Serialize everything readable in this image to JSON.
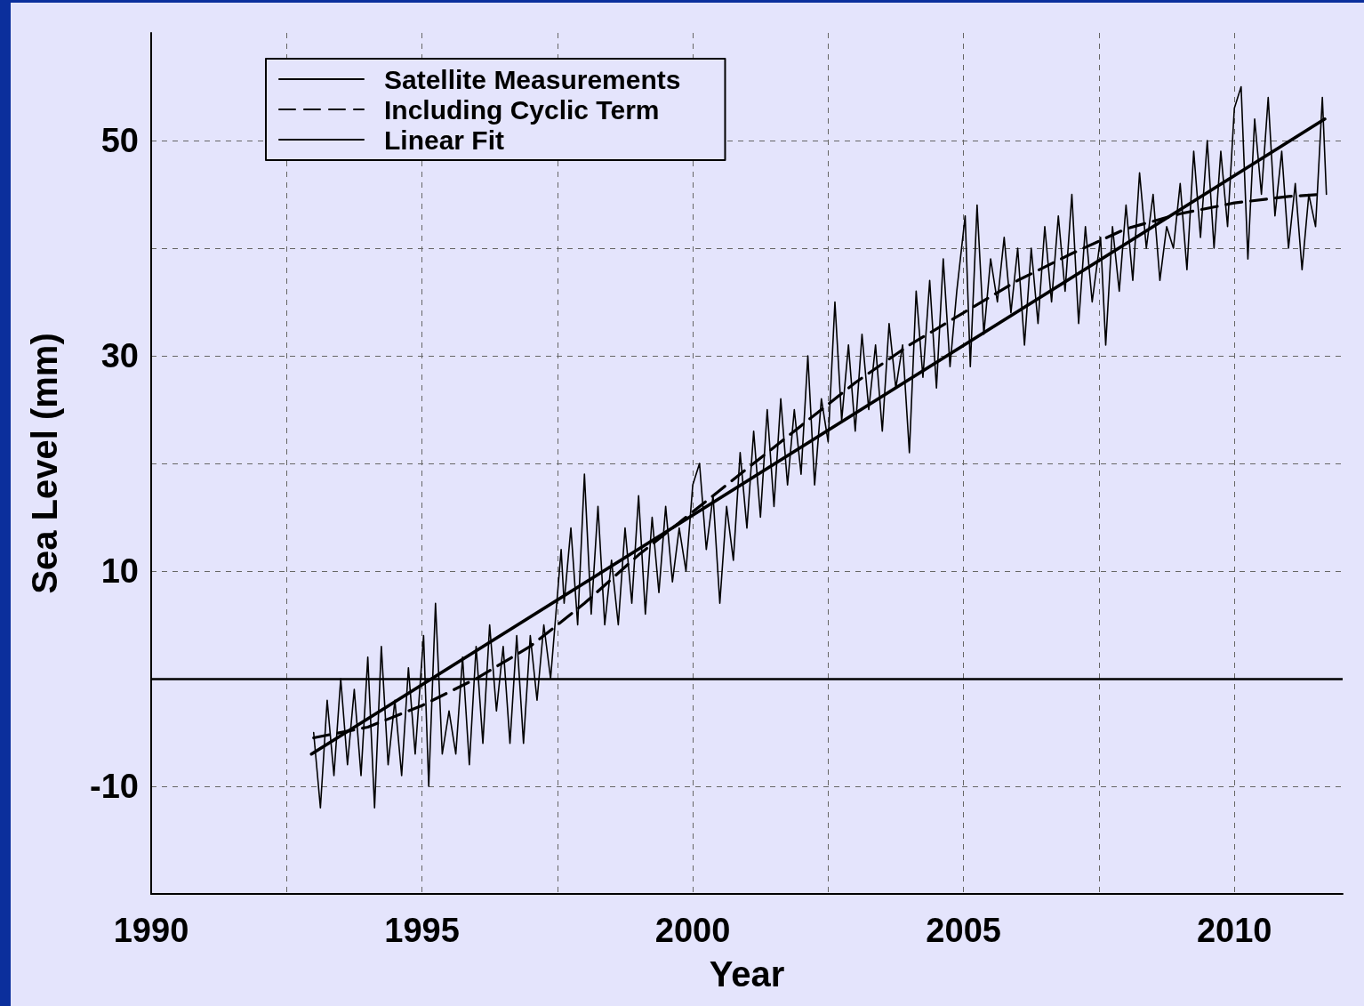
{
  "chart_data": {
    "type": "line",
    "xlabel": "Year",
    "ylabel": "Sea Level (mm)",
    "xlim": [
      1990,
      2012
    ],
    "ylim": [
      -20,
      60
    ],
    "xticks": [
      1990,
      {
        "value": 1992.5,
        "label": null
      },
      1995,
      {
        "value": 1997.5,
        "label": null
      },
      2000,
      {
        "value": 2002.5,
        "label": null
      },
      2005,
      {
        "value": 2007.5,
        "label": null
      },
      2010
    ],
    "yticks": [
      -10,
      {
        "value": 0,
        "label": null
      },
      10,
      {
        "value": 20,
        "label": null
      },
      30,
      {
        "value": 40,
        "label": null
      },
      50
    ],
    "grid": true,
    "legend": "top left",
    "marker": "none",
    "ref_lines": [
      {
        "axis": "y",
        "value": 0,
        "label": null,
        "color": "#000000",
        "line_style": "solid"
      }
    ],
    "series": [
      {
        "name": "Satellite Measurements",
        "color": "#000000",
        "line_style": "solid",
        "x": [
          1993,
          1993.125,
          1993.25,
          1993.375,
          1993.5,
          1993.625,
          1993.75,
          1993.875,
          1994,
          1994.125,
          1994.25,
          1994.375,
          1994.5,
          1994.625,
          1994.75,
          1994.875,
          1995.03,
          1995.125,
          1995.25,
          1995.375,
          1995.5,
          1995.625,
          1995.75,
          1995.875,
          1996,
          1996.125,
          1996.25,
          1996.375,
          1996.5,
          1996.625,
          1996.75,
          1996.875,
          1997,
          1997.125,
          1997.25,
          1997.375,
          1997.57,
          1997.625,
          1997.75,
          1997.875,
          1998,
          1998.125,
          1998.25,
          1998.375,
          1998.5,
          1998.625,
          1998.75,
          1998.875,
          1999,
          1999.125,
          1999.25,
          1999.375,
          1999.5,
          1999.625,
          1999.75,
          1999.875,
          2000,
          2000.125,
          2000.25,
          2000.375,
          2000.5,
          2000.625,
          2000.75,
          2000.875,
          2001,
          2001.125,
          2001.25,
          2001.375,
          2001.5,
          2001.625,
          2001.75,
          2001.875,
          2002,
          2002.125,
          2002.25,
          2002.375,
          2002.5,
          2002.625,
          2002.75,
          2002.875,
          2003,
          2003.125,
          2003.25,
          2003.375,
          2003.5,
          2003.625,
          2003.75,
          2003.875,
          2004,
          2004.125,
          2004.25,
          2004.375,
          2004.5,
          2004.625,
          2004.75,
          2004.875,
          2005.03,
          2005.125,
          2005.25,
          2005.375,
          2005.5,
          2005.625,
          2005.75,
          2005.875,
          2006,
          2006.125,
          2006.25,
          2006.375,
          2006.5,
          2006.625,
          2006.75,
          2006.875,
          2007,
          2007.125,
          2007.25,
          2007.375,
          2007.53,
          2007.625,
          2007.75,
          2007.875,
          2008,
          2008.125,
          2008.25,
          2008.375,
          2008.5,
          2008.625,
          2008.75,
          2008.875,
          2009,
          2009.125,
          2009.25,
          2009.375,
          2009.5,
          2009.625,
          2009.75,
          2009.875,
          2010,
          2010.125,
          2010.25,
          2010.375,
          2010.5,
          2010.625,
          2010.75,
          2010.875,
          2011,
          2011.125,
          2011.25,
          2011.375,
          2011.5,
          2011.625,
          2011.7
        ],
        "values": [
          -5,
          -12,
          -2,
          -9,
          0,
          -8,
          -1,
          -9,
          2,
          -12,
          3,
          -8,
          -2,
          -9,
          1,
          -7,
          4,
          -10,
          7,
          -7,
          -3,
          -7,
          2,
          -8,
          3,
          -6,
          5,
          -3,
          3,
          -6,
          4,
          -6,
          4,
          -2,
          5,
          0,
          12,
          7,
          14,
          5,
          19,
          6,
          16,
          5,
          11,
          5,
          14,
          7,
          17,
          6,
          15,
          8,
          16,
          9,
          14,
          10,
          18,
          20,
          12,
          17,
          7,
          16,
          11,
          21,
          14,
          23,
          15,
          25,
          16,
          26,
          18,
          25,
          19,
          30,
          18,
          26,
          22,
          35,
          24,
          31,
          23,
          32,
          25,
          31,
          23,
          33,
          27,
          31,
          21,
          36,
          28,
          37,
          27,
          39,
          29,
          36,
          43,
          29,
          44,
          32,
          39,
          35,
          41,
          34,
          40,
          31,
          40,
          33,
          42,
          35,
          43,
          36,
          45,
          33,
          42,
          35,
          41,
          31,
          42,
          36,
          44,
          37,
          47,
          40,
          45,
          37,
          42,
          40,
          46,
          38,
          49,
          41,
          50,
          40,
          49,
          42,
          53,
          55,
          39,
          52,
          45,
          54,
          43,
          49,
          40,
          46,
          38,
          45,
          42,
          54,
          45
        ]
      },
      {
        "name": "Including Cyclic Term",
        "color": "#000000",
        "line_style": "dashed",
        "x": [
          1993,
          1994,
          1995,
          1996,
          1997,
          1998,
          1999,
          2000,
          2001,
          2002,
          2003,
          2004,
          2005,
          2006,
          2007,
          2008,
          2009,
          2010,
          2011,
          2011.6
        ],
        "values": [
          -5.5,
          -4.5,
          -2.5,
          0,
          3,
          7,
          11.5,
          15.5,
          19.5,
          23.5,
          27.5,
          31,
          34,
          37,
          39.5,
          41.8,
          43.2,
          44.2,
          44.8,
          45
        ]
      },
      {
        "name": "Linear Fit",
        "color": "#000000",
        "line_style": "solid",
        "x": [
          1992.96,
          2011.67
        ],
        "values": [
          -7,
          52
        ]
      }
    ]
  }
}
